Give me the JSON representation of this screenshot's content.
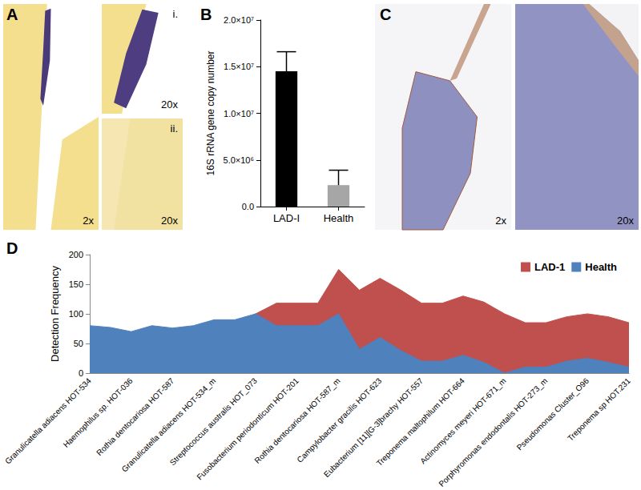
{
  "panels": [
    {
      "letter": "A",
      "views": [
        {
          "magnification": "2x"
        },
        {
          "tag": "i.",
          "magnification": "20x"
        },
        {
          "tag": "ii.",
          "magnification": "20x"
        }
      ]
    },
    {
      "letter": "C",
      "views": [
        {
          "magnification": "2x"
        },
        {
          "magnification": "20x"
        }
      ]
    }
  ],
  "chart_data": [
    {
      "panel": "B",
      "type": "bar",
      "categories": [
        "LAD-I",
        "Health"
      ],
      "values": [
        14500000,
        2300000
      ],
      "errors": [
        2100000,
        1600000
      ],
      "colors": [
        "#000000",
        "#a6a6a6"
      ],
      "y_label": "16S rRNA gene copy number",
      "ylim": [
        0,
        20000000
      ],
      "yticks": [
        {
          "value": 0,
          "label": "0.0"
        },
        {
          "value": 5000000,
          "label": "5.0×10⁶"
        },
        {
          "value": 10000000,
          "label": "1.0×10⁷"
        },
        {
          "value": 15000000,
          "label": "1.5×10⁷"
        },
        {
          "value": 20000000,
          "label": "2.0×10⁷"
        }
      ],
      "grid": false
    },
    {
      "panel": "D",
      "type": "area",
      "y_label": "Detection Frequency",
      "categories": [
        "Granulicatella adiacens HOT-534",
        null,
        "Haemophilus sp. HOT-036",
        null,
        "Rothia dentocariosa HOT-587",
        null,
        "Granulicatella adiacens HOT-534_m",
        null,
        "Streptococcus australis HOT_073",
        null,
        "Fusobacterium periodonticum HOT-201",
        null,
        "Rothia dentocariosa HOT-587_m",
        null,
        "Campylobacter gracilis HOT-623",
        null,
        "Eubacterium [11][G-3]brachy HOT-557",
        null,
        "Treponema maltophilum HOT-664",
        null,
        "Actinomyces meyeri HOT-671_m",
        null,
        "Porphyromonas endodontalis HOT-273_m",
        null,
        "Pseudomonas Cluster_O96",
        null,
        "Treponema sp HOT.231"
      ],
      "series": [
        {
          "name": "LAD-1",
          "color": "#c0504d",
          "values": [
            60,
            55,
            50,
            55,
            60,
            65,
            70,
            80,
            100,
            118,
            118,
            118,
            175,
            140,
            160,
            140,
            118,
            118,
            130,
            120,
            100,
            85,
            85,
            95,
            100,
            95,
            85
          ]
        },
        {
          "name": "Health",
          "color": "#4f81bd",
          "values": [
            80,
            77,
            70,
            80,
            76,
            80,
            90,
            90,
            100,
            80,
            80,
            80,
            100,
            40,
            60,
            38,
            20,
            20,
            30,
            18,
            0,
            10,
            10,
            20,
            25,
            18,
            10
          ]
        }
      ],
      "ylim": [
        0,
        200
      ],
      "yticks": [
        0,
        50,
        100,
        150,
        200
      ],
      "grid": false,
      "legend": "top-right"
    }
  ]
}
